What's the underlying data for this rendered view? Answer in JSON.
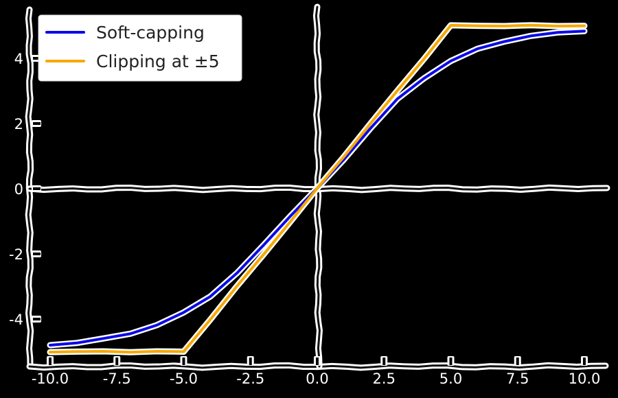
{
  "chart_data": {
    "type": "line",
    "title": "",
    "xlabel": "",
    "ylabel": "",
    "xlim": [
      -10.5,
      10.5
    ],
    "ylim": [
      -5.4,
      5.4
    ],
    "x_ticks": [
      "-10.0",
      "-7.5",
      "-5.0",
      "-2.5",
      "0.0",
      "2.5",
      "5.0",
      "7.5",
      "10.0"
    ],
    "x_tick_values": [
      -10,
      -7.5,
      -5,
      -2.5,
      0,
      2.5,
      5,
      7.5,
      10
    ],
    "y_ticks": [
      "-4",
      "-2",
      "0",
      "2",
      "4"
    ],
    "y_tick_values": [
      -4,
      -2,
      0,
      2,
      4
    ],
    "grid": false,
    "legend_position": "top-left",
    "style": "hand-drawn",
    "background": "#000000",
    "series": [
      {
        "name": "Soft-capping",
        "color": "#0a0ae6",
        "x": [
          -10,
          -9,
          -8,
          -7,
          -6,
          -5,
          -4,
          -3,
          -2,
          -1,
          0,
          1,
          2,
          3,
          4,
          5,
          6,
          7,
          8,
          9,
          10
        ],
        "y": [
          -4.8,
          -4.72,
          -4.61,
          -4.44,
          -4.18,
          -3.81,
          -3.29,
          -2.59,
          -1.73,
          -0.82,
          0,
          0.9,
          1.87,
          2.74,
          3.4,
          3.92,
          4.28,
          4.53,
          4.68,
          4.79,
          4.85
        ]
      },
      {
        "name": "Clipping at ±5",
        "color": "#f5a800",
        "x": [
          -10,
          -9,
          -8,
          -7,
          -6,
          -5,
          -4,
          -3,
          -2,
          -1,
          0,
          1,
          2,
          3,
          4,
          5,
          6,
          7,
          8,
          9,
          10
        ],
        "y": [
          -5.0,
          -5.0,
          -5.0,
          -5.0,
          -5.0,
          -5.0,
          -4.0,
          -3.0,
          -2.0,
          -1.0,
          0,
          1.0,
          2.0,
          3.0,
          4.0,
          5.0,
          5.0,
          5.0,
          5.0,
          5.0,
          5.0
        ]
      }
    ]
  }
}
